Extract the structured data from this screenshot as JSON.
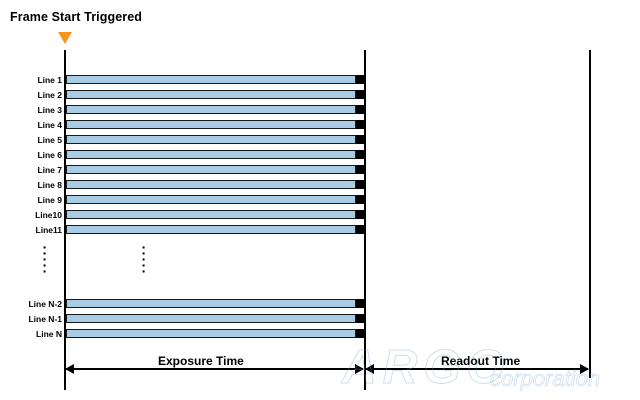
{
  "title": "Frame Start Triggered",
  "trigger_marker_color": "#f7941d",
  "bar_fill_color": "#a8cce6",
  "rows_top": [
    {
      "label": "Line 1"
    },
    {
      "label": "Line 2"
    },
    {
      "label": "Line 3"
    },
    {
      "label": "Line 4"
    },
    {
      "label": "Line 5"
    },
    {
      "label": "Line 6"
    },
    {
      "label": "Line 7"
    },
    {
      "label": "Line 8"
    },
    {
      "label": "Line 9"
    },
    {
      "label": "Line10"
    },
    {
      "label": "Line11"
    }
  ],
  "rows_bottom": [
    {
      "label": "Line N-2"
    },
    {
      "label": "Line N-1"
    },
    {
      "label": "Line N"
    }
  ],
  "exposure_label": "Exposure Time",
  "readout_label": "Readout Time",
  "watermark": {
    "logo_text": "ARGO",
    "company_text": "corporation"
  }
}
